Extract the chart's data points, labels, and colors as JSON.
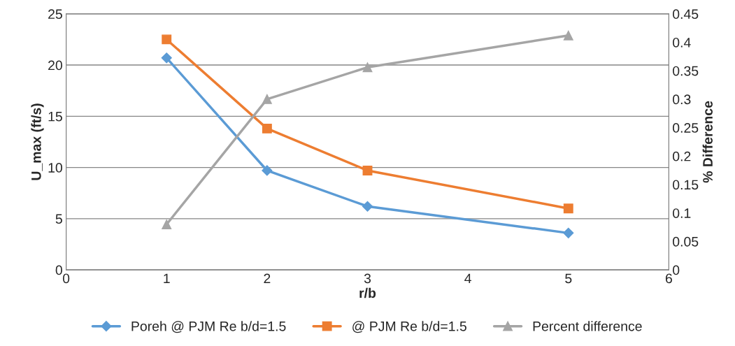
{
  "chart_data": {
    "type": "line",
    "xlabel": "r/b",
    "ylabel": "U_max (ft/s)",
    "y2label": "% Difference",
    "x": [
      1,
      2,
      3,
      5
    ],
    "series": [
      {
        "name": "Poreh @ PJM Re b/d=1.5",
        "color": "#5b9bd5",
        "marker": "diamond",
        "values": [
          20.7,
          9.7,
          6.2,
          3.6
        ]
      },
      {
        "name": "@ PJM Re b/d=1.5",
        "color": "#ed7d31",
        "marker": "square",
        "values": [
          22.5,
          13.8,
          9.7,
          6.0
        ]
      },
      {
        "name": "Percent difference",
        "color": "#a5a5a5",
        "marker": "triangle",
        "axis": "y2",
        "values": [
          0.08,
          0.3,
          0.356,
          0.412
        ]
      }
    ],
    "xlim": [
      0,
      6
    ],
    "xticks": [
      0,
      1,
      2,
      3,
      4,
      5,
      6
    ],
    "ylim": [
      0,
      25
    ],
    "yticks": [
      0,
      5,
      10,
      15,
      20,
      25
    ],
    "y2lim": [
      0,
      0.45
    ],
    "y2ticks": [
      0,
      0.05,
      0.1,
      0.15,
      0.2,
      0.25,
      0.3,
      0.35,
      0.4,
      0.45
    ],
    "grid": "y",
    "legend": "bottom",
    "line_style": "solid"
  }
}
